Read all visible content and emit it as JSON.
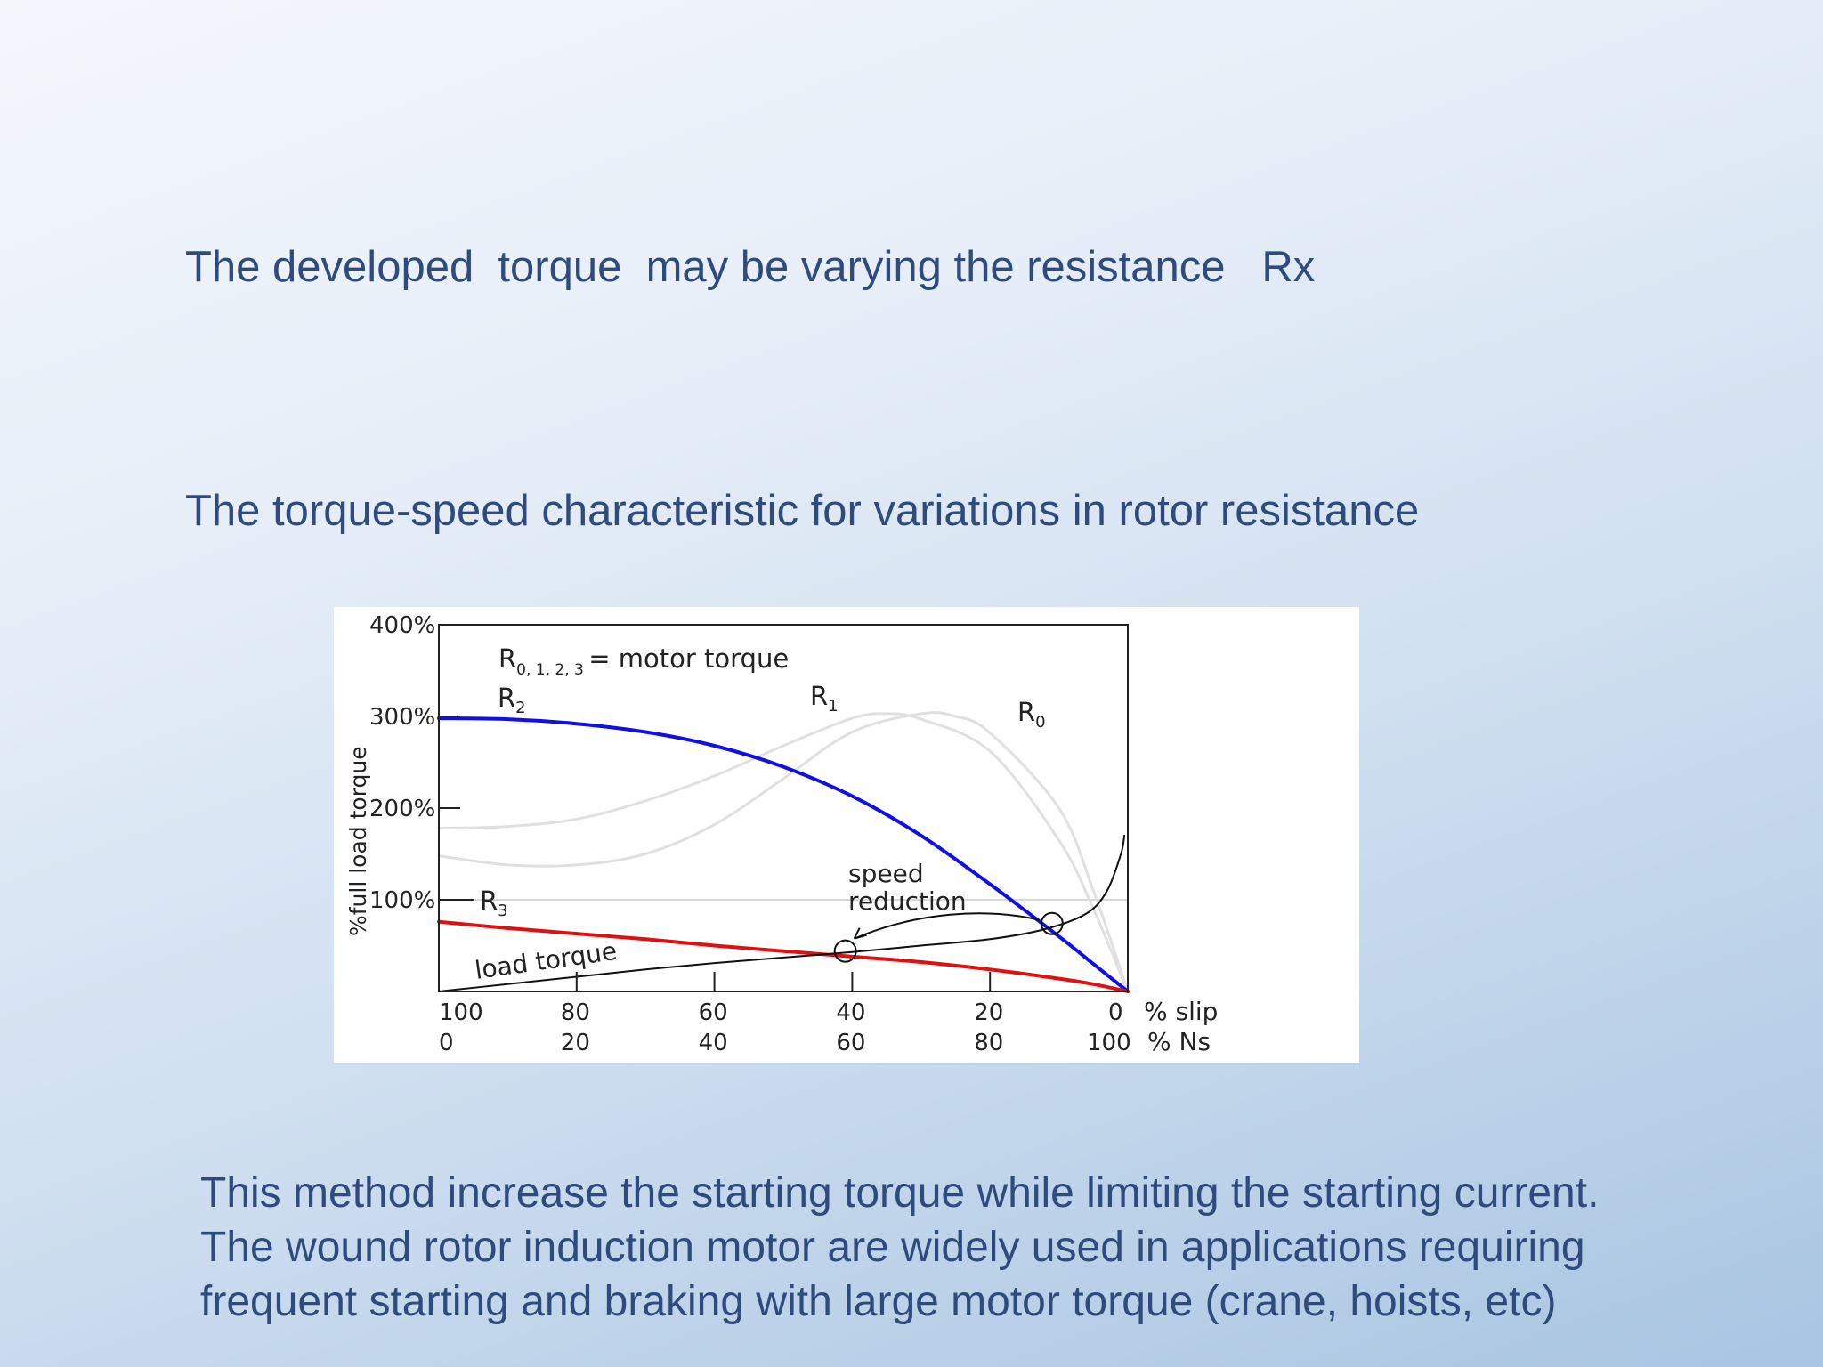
{
  "slide": {
    "heading1": "The developed  torque  may be varying the resistance   Rx",
    "heading2": "The torque-speed characteristic for variations in rotor resistance",
    "caption_lines": [
      "This method increase the starting torque while limiting the starting current.",
      "The wound rotor induction motor are widely used in applications requiring",
      "frequent starting and braking with large motor torque (crane, hoists, etc)"
    ]
  },
  "chart_data": {
    "type": "line",
    "ylabel": "%full load torque",
    "y_ticks": [
      "400%",
      "300%",
      "200%",
      "100%"
    ],
    "x_ticks_slip": [
      "100",
      "80",
      "60",
      "40",
      "20",
      "0"
    ],
    "x_ticks_ns": [
      "0",
      "20",
      "40",
      "60",
      "80",
      "100"
    ],
    "x_unit_slip": "% slip",
    "x_unit_ns": "% Ns",
    "ylim": [
      0,
      400
    ],
    "xlim": [
      100,
      0
    ],
    "legend_text": "= motor torque",
    "legend_symbol": "R",
    "legend_subscripts": [
      "0,",
      "1,",
      "2,",
      "3"
    ],
    "annotations": {
      "speed_line1": "speed",
      "speed_line2": "reduction",
      "load": "load torque"
    },
    "series": [
      {
        "name": "R",
        "sub": "0",
        "color": "#e0e0e0",
        "points": [
          [
            100,
            148
          ],
          [
            90,
            138
          ],
          [
            80,
            138
          ],
          [
            70,
            150
          ],
          [
            60,
            182
          ],
          [
            50,
            232
          ],
          [
            40,
            283
          ],
          [
            30,
            303
          ],
          [
            25,
            300
          ],
          [
            20,
            282
          ],
          [
            10,
            200
          ],
          [
            5,
            110
          ],
          [
            0,
            0
          ]
        ]
      },
      {
        "name": "R",
        "sub": "1",
        "color": "#e0e0e0",
        "points": [
          [
            100,
            178
          ],
          [
            90,
            180
          ],
          [
            80,
            188
          ],
          [
            70,
            208
          ],
          [
            60,
            235
          ],
          [
            50,
            268
          ],
          [
            40,
            298
          ],
          [
            35,
            303
          ],
          [
            30,
            297
          ],
          [
            20,
            262
          ],
          [
            10,
            165
          ],
          [
            5,
            90
          ],
          [
            0,
            0
          ]
        ]
      },
      {
        "name": "R",
        "sub": "2",
        "color": "#1010e6",
        "points": [
          [
            100,
            298
          ],
          [
            90,
            297
          ],
          [
            80,
            292
          ],
          [
            70,
            283
          ],
          [
            60,
            268
          ],
          [
            50,
            245
          ],
          [
            40,
            213
          ],
          [
            30,
            170
          ],
          [
            20,
            117
          ],
          [
            10,
            60
          ],
          [
            5,
            30
          ],
          [
            0,
            0
          ]
        ]
      },
      {
        "name": "R",
        "sub": "3",
        "color": "#e01010",
        "points": [
          [
            100,
            76
          ],
          [
            90,
            69
          ],
          [
            80,
            63
          ],
          [
            70,
            57
          ],
          [
            60,
            50
          ],
          [
            50,
            44
          ],
          [
            40,
            38
          ],
          [
            30,
            32
          ],
          [
            20,
            24
          ],
          [
            10,
            14
          ],
          [
            5,
            8
          ],
          [
            0,
            0
          ]
        ]
      },
      {
        "name": "load torque",
        "sub": "",
        "color": "#111111",
        "points": [
          [
            100,
            0
          ],
          [
            90,
            8
          ],
          [
            80,
            16
          ],
          [
            70,
            24
          ],
          [
            60,
            31
          ],
          [
            50,
            37
          ],
          [
            40,
            43
          ],
          [
            30,
            50
          ],
          [
            20,
            57
          ],
          [
            12,
            68
          ],
          [
            6,
            85
          ],
          [
            3,
            110
          ],
          [
            1,
            150
          ],
          [
            0.5,
            170
          ]
        ]
      }
    ],
    "intersection_points": [
      [
        41,
        44
      ],
      [
        11,
        74
      ]
    ],
    "reference_line_y": 100
  }
}
